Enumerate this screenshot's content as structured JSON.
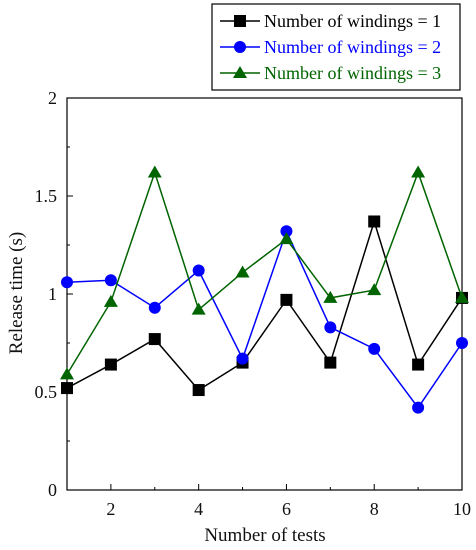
{
  "chart_data": {
    "type": "line",
    "title": "",
    "xlabel": "Number of tests",
    "ylabel": "Release time (s)",
    "xlim": [
      1,
      10
    ],
    "ylim": [
      0,
      2
    ],
    "x": [
      1,
      2,
      3,
      4,
      5,
      6,
      7,
      8,
      9,
      10
    ],
    "x_ticks": [
      2,
      4,
      6,
      8,
      10
    ],
    "x_tick_labels": [
      "2",
      "4",
      "6",
      "8",
      "10"
    ],
    "y_ticks": [
      0,
      0.5,
      1,
      1.5,
      2
    ],
    "y_tick_labels": [
      "0",
      "0.5",
      "1",
      "1.5",
      "2"
    ],
    "grid": false,
    "legend_position": "top-right",
    "series": [
      {
        "name": "Number of windings = 1",
        "color": "#000000",
        "marker": "square",
        "values": [
          0.52,
          0.64,
          0.77,
          0.51,
          0.65,
          0.97,
          0.65,
          1.37,
          0.64,
          0.98
        ]
      },
      {
        "name": "Number of windings = 2",
        "color": "#0000ff",
        "marker": "circle",
        "values": [
          1.06,
          1.07,
          0.93,
          1.12,
          0.67,
          1.32,
          0.83,
          0.72,
          0.42,
          0.75
        ]
      },
      {
        "name": "Number of windings = 3",
        "color": "#006400",
        "marker": "triangle",
        "values": [
          0.59,
          0.96,
          1.62,
          0.92,
          1.11,
          1.28,
          0.98,
          1.02,
          1.62,
          0.98
        ]
      }
    ]
  }
}
